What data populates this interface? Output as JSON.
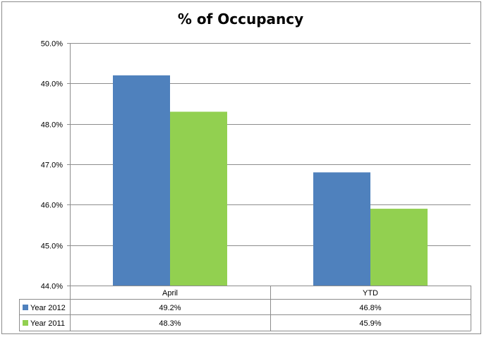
{
  "chart_data": {
    "type": "bar",
    "title": "% of Occupancy",
    "categories": [
      "April",
      "YTD"
    ],
    "series": [
      {
        "name": "Year 2012",
        "color": "#4f81bd",
        "values": [
          49.2,
          46.8
        ],
        "labels": [
          "49.2%",
          "46.8%"
        ]
      },
      {
        "name": "Year 2011",
        "color": "#92d050",
        "values": [
          48.3,
          45.9
        ],
        "labels": [
          "48.3%",
          "45.9%"
        ]
      }
    ],
    "ylim": [
      44.0,
      50.0
    ],
    "yticks": [
      44.0,
      45.0,
      46.0,
      47.0,
      48.0,
      49.0,
      50.0
    ],
    "ytick_labels": [
      "44.0%",
      "45.0%",
      "46.0%",
      "47.0%",
      "48.0%",
      "49.0%",
      "50.0%"
    ],
    "grid": true,
    "legend": "data-table"
  }
}
